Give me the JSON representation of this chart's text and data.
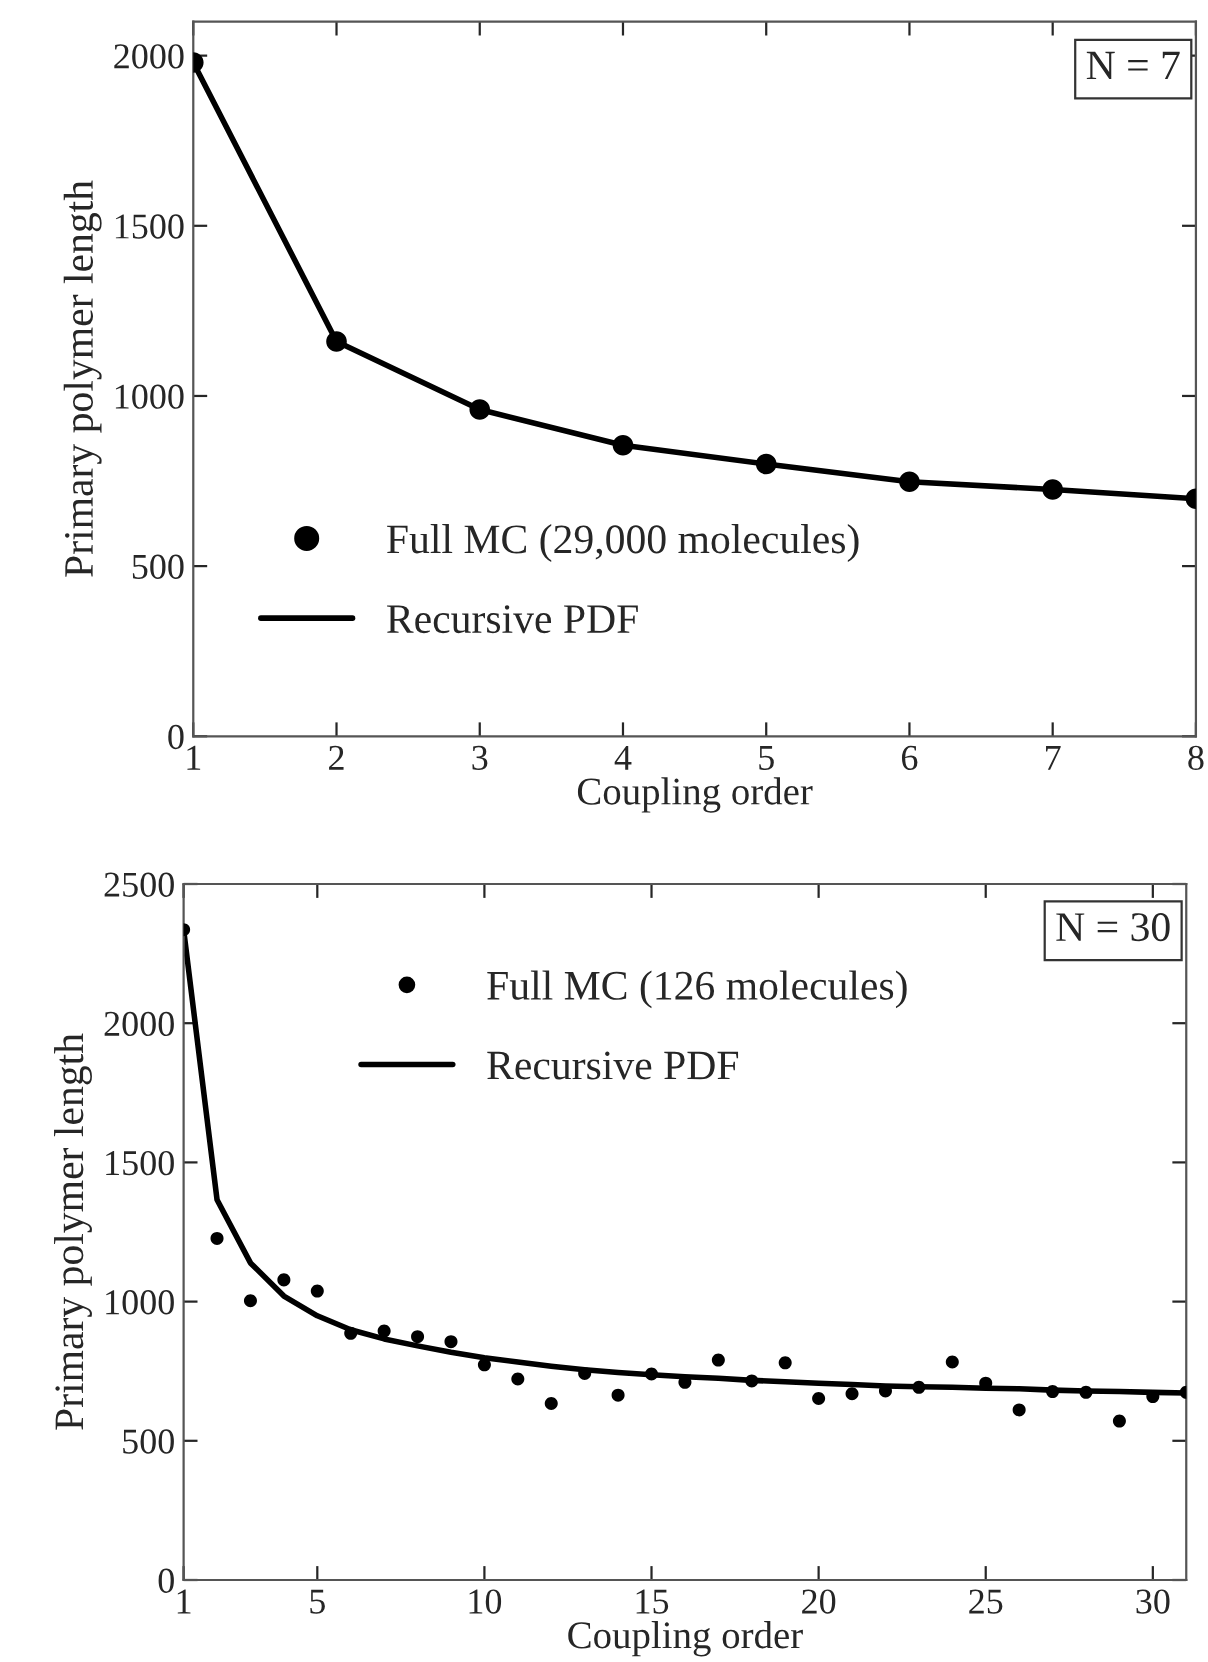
{
  "chart_data": [
    {
      "type": "line",
      "xlabel": "Coupling order",
      "ylabel": "Primary polymer length",
      "x": [
        1,
        2,
        3,
        4,
        5,
        6,
        7,
        8
      ],
      "xlim": [
        1,
        8
      ],
      "xticks": [
        1,
        2,
        3,
        4,
        5,
        6,
        7,
        8
      ],
      "ylim": [
        0,
        2100
      ],
      "yticks": [
        0,
        500,
        1000,
        1500,
        2000
      ],
      "grid": false,
      "legend": "bottom left",
      "annotations": [
        "N = 7"
      ],
      "series": [
        {
          "name": "Full MC (29,000 molecules)",
          "type": "scatter",
          "marker": "circle",
          "color": "#000000",
          "values": [
            1980,
            1160,
            960,
            855,
            800,
            748,
            725,
            698
          ]
        },
        {
          "name": "Recursive PDF",
          "marker": "none",
          "line_style": "solid",
          "color": "#000000",
          "values": [
            1980,
            1160,
            960,
            855,
            800,
            748,
            725,
            698
          ]
        }
      ]
    },
    {
      "type": "line",
      "xlabel": "Coupling order",
      "ylabel": "Primary polymer length",
      "x": [
        1,
        2,
        3,
        4,
        5,
        6,
        7,
        8,
        9,
        10,
        11,
        12,
        13,
        14,
        15,
        16,
        17,
        18,
        19,
        20,
        21,
        22,
        23,
        24,
        25,
        26,
        27,
        28,
        29,
        30,
        31
      ],
      "xlim": [
        1,
        31
      ],
      "xticks": [
        1,
        5,
        10,
        15,
        20,
        25,
        30
      ],
      "ylim": [
        0,
        2500
      ],
      "yticks": [
        0,
        500,
        1000,
        1500,
        2000,
        2500
      ],
      "grid": false,
      "legend": "top",
      "annotations": [
        "N = 30"
      ],
      "series": [
        {
          "name": "Full MC (126 molecules)",
          "type": "scatter",
          "marker": "circle",
          "color": "#000000",
          "values": [
            2336,
            1227,
            1003,
            1078,
            1038,
            886,
            894,
            874,
            856,
            773,
            722,
            634,
            742,
            664,
            740,
            710,
            790,
            715,
            780,
            652,
            669,
            679,
            692,
            783,
            707,
            611,
            677,
            674,
            571,
            659,
            674
          ]
        },
        {
          "name": "Recursive PDF",
          "marker": "none",
          "line_style": "solid",
          "color": "#000000",
          "values": [
            2336,
            1366,
            1139,
            1020,
            949,
            899,
            866,
            841,
            818,
            798,
            783,
            768,
            755,
            745,
            737,
            730,
            725,
            717,
            712,
            707,
            702,
            697,
            694,
            692,
            689,
            687,
            682,
            679,
            677,
            674,
            672
          ]
        }
      ]
    }
  ]
}
